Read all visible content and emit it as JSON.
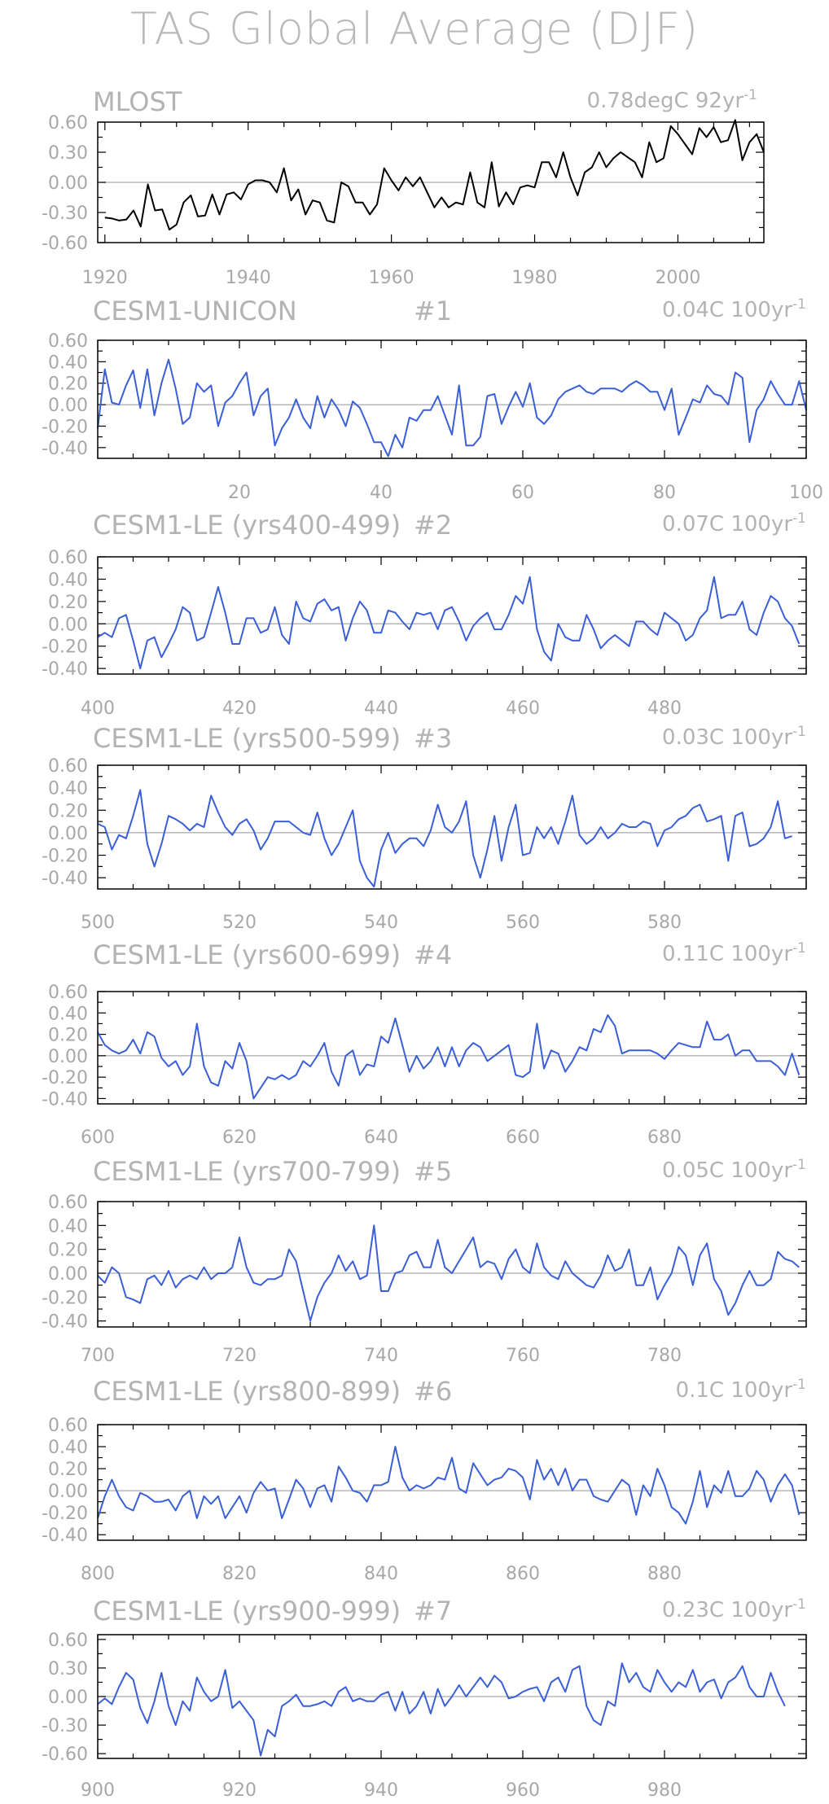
{
  "title": "TAS Global Average (DJF)",
  "colors": {
    "observed": "#000000",
    "model": "#3a5fd6",
    "frame": "#000000",
    "text": "#b3b3b3",
    "zero_line": "#aaaaaa"
  },
  "chart_data": [
    {
      "type": "line",
      "title": "MLOST",
      "run": "",
      "trend": "0.78degC 92yr",
      "trend_exponent": "-1",
      "xlim": [
        1919,
        2012
      ],
      "ylim": [
        -0.6,
        0.6
      ],
      "yticks": [
        "0.60",
        "0.30",
        "0.00",
        "-0.30",
        "-0.60"
      ],
      "yticks_values": [
        0.6,
        0.3,
        0.0,
        -0.3,
        -0.6
      ],
      "xticks": [
        "1920",
        "1940",
        "1960",
        "1980",
        "2000"
      ],
      "xticks_values": [
        1920,
        1940,
        1960,
        1980,
        2000
      ],
      "color": "#000000",
      "x_start": 1920,
      "values": [
        -0.35,
        -0.36,
        -0.38,
        -0.37,
        -0.28,
        -0.44,
        -0.02,
        -0.28,
        -0.27,
        -0.47,
        -0.42,
        -0.2,
        -0.13,
        -0.34,
        -0.33,
        -0.12,
        -0.32,
        -0.12,
        -0.1,
        -0.17,
        -0.02,
        0.02,
        0.02,
        0.0,
        -0.1,
        0.14,
        -0.18,
        -0.07,
        -0.32,
        -0.18,
        -0.2,
        -0.38,
        -0.4,
        0.0,
        -0.04,
        -0.2,
        -0.2,
        -0.32,
        -0.22,
        0.14,
        0.02,
        -0.08,
        0.05,
        -0.04,
        0.05,
        -0.1,
        -0.25,
        -0.15,
        -0.25,
        -0.2,
        -0.22,
        0.1,
        -0.2,
        -0.25,
        0.2,
        -0.24,
        -0.1,
        -0.22,
        -0.05,
        -0.03,
        -0.05,
        0.2,
        0.2,
        0.05,
        0.3,
        0.05,
        -0.13,
        0.1,
        0.15,
        0.3,
        0.15,
        0.24,
        0.3,
        0.25,
        0.2,
        0.05,
        0.4,
        0.2,
        0.24,
        0.56,
        0.48,
        0.38,
        0.28,
        0.54,
        0.45,
        0.55,
        0.4,
        0.42,
        0.62,
        0.22,
        0.4,
        0.48,
        0.3
      ]
    },
    {
      "type": "line",
      "title": "CESM1-UNICON",
      "run": "#1",
      "trend": "0.04C 100yr",
      "trend_exponent": "-1",
      "xlim": [
        0,
        100
      ],
      "ylim": [
        -0.5,
        0.6
      ],
      "yticks": [
        "0.60",
        "0.40",
        "0.20",
        "0.00",
        "-0.20",
        "-0.40"
      ],
      "yticks_values": [
        0.6,
        0.4,
        0.2,
        0.0,
        -0.2,
        -0.4
      ],
      "xticks": [
        "20",
        "40",
        "60",
        "80",
        "100"
      ],
      "xticks_values": [
        20,
        40,
        60,
        80,
        100
      ],
      "color": "#3a5fd6",
      "x_start": 0,
      "values": [
        -0.22,
        0.33,
        0.02,
        0.0,
        0.18,
        0.32,
        -0.03,
        0.33,
        -0.1,
        0.2,
        0.42,
        0.15,
        -0.18,
        -0.12,
        0.2,
        0.12,
        0.18,
        -0.2,
        0.02,
        0.08,
        0.2,
        0.3,
        -0.1,
        0.08,
        0.15,
        -0.38,
        -0.22,
        -0.12,
        0.05,
        -0.12,
        -0.22,
        0.08,
        -0.12,
        0.05,
        -0.05,
        -0.2,
        0.03,
        -0.03,
        -0.18,
        -0.35,
        -0.35,
        -0.48,
        -0.28,
        -0.4,
        -0.12,
        -0.15,
        -0.05,
        -0.05,
        0.08,
        -0.1,
        -0.28,
        0.18,
        -0.38,
        -0.38,
        -0.3,
        0.08,
        0.1,
        -0.18,
        -0.02,
        0.12,
        -0.02,
        0.2,
        -0.12,
        -0.18,
        -0.1,
        0.05,
        0.12,
        0.15,
        0.18,
        0.12,
        0.1,
        0.15,
        0.15,
        0.15,
        0.12,
        0.18,
        0.22,
        0.18,
        0.12,
        0.12,
        -0.05,
        0.15,
        -0.28,
        -0.12,
        0.05,
        0.02,
        0.18,
        0.1,
        0.08,
        0.0,
        0.3,
        0.25,
        -0.35,
        -0.05,
        0.05,
        0.22,
        0.1,
        0.0,
        0.0,
        0.22,
        -0.05
      ]
    },
    {
      "type": "line",
      "title": "CESM1-LE (yrs400-499)",
      "run": "#2",
      "trend": "0.07C 100yr",
      "trend_exponent": "-1",
      "xlim": [
        400,
        500
      ],
      "ylim": [
        -0.45,
        0.6
      ],
      "yticks": [
        "0.60",
        "0.40",
        "0.20",
        "0.00",
        "-0.20",
        "-0.40"
      ],
      "yticks_values": [
        0.6,
        0.4,
        0.2,
        0.0,
        -0.2,
        -0.4
      ],
      "xticks": [
        "400",
        "420",
        "440",
        "460",
        "480"
      ],
      "xticks_values": [
        400,
        420,
        440,
        460,
        480
      ],
      "color": "#3a5fd6",
      "x_start": 400,
      "values": [
        -0.12,
        -0.08,
        -0.12,
        0.05,
        0.08,
        -0.15,
        -0.4,
        -0.15,
        -0.12,
        -0.3,
        -0.18,
        -0.05,
        0.15,
        0.1,
        -0.15,
        -0.12,
        0.1,
        0.33,
        0.1,
        -0.18,
        -0.18,
        0.05,
        0.05,
        -0.08,
        -0.05,
        0.15,
        -0.1,
        -0.18,
        0.2,
        0.05,
        0.02,
        0.18,
        0.22,
        0.12,
        0.15,
        -0.15,
        0.05,
        0.2,
        0.12,
        -0.08,
        -0.08,
        0.12,
        0.1,
        0.02,
        -0.05,
        0.1,
        0.08,
        0.1,
        -0.05,
        0.12,
        0.15,
        0.02,
        -0.15,
        -0.02,
        0.05,
        0.1,
        -0.05,
        -0.05,
        0.08,
        0.25,
        0.18,
        0.42,
        -0.05,
        -0.25,
        -0.33,
        0.0,
        -0.12,
        -0.15,
        -0.15,
        0.08,
        -0.05,
        -0.22,
        -0.15,
        -0.1,
        -0.15,
        -0.2,
        0.02,
        0.02,
        -0.05,
        -0.1,
        0.1,
        0.05,
        0.0,
        -0.15,
        -0.1,
        0.05,
        0.12,
        0.42,
        0.05,
        0.08,
        0.08,
        0.2,
        -0.05,
        -0.1,
        0.1,
        0.25,
        0.2,
        0.05,
        -0.02,
        -0.18
      ]
    },
    {
      "type": "line",
      "title": "CESM1-LE (yrs500-599)",
      "run": "#3",
      "trend": "0.03C 100yr",
      "trend_exponent": "-1",
      "xlim": [
        500,
        600
      ],
      "ylim": [
        -0.5,
        0.6
      ],
      "yticks": [
        "0.60",
        "0.40",
        "0.20",
        "0.00",
        "-0.20",
        "-0.40"
      ],
      "yticks_values": [
        0.6,
        0.4,
        0.2,
        0.0,
        -0.2,
        -0.4
      ],
      "xticks": [
        "500",
        "520",
        "540",
        "560",
        "580"
      ],
      "xticks_values": [
        500,
        520,
        540,
        560,
        580
      ],
      "color": "#3a5fd6",
      "x_start": 500,
      "values": [
        0.08,
        0.05,
        -0.15,
        -0.02,
        -0.05,
        0.15,
        0.38,
        -0.1,
        -0.3,
        -0.1,
        0.15,
        0.12,
        0.08,
        0.02,
        0.08,
        0.05,
        0.33,
        0.18,
        0.05,
        -0.02,
        0.08,
        0.12,
        0.02,
        -0.15,
        -0.05,
        0.1,
        0.1,
        0.1,
        0.05,
        0.0,
        -0.02,
        0.18,
        -0.05,
        -0.2,
        -0.1,
        0.05,
        0.2,
        -0.25,
        -0.4,
        -0.48,
        -0.15,
        0.0,
        -0.18,
        -0.1,
        -0.05,
        -0.05,
        -0.12,
        0.02,
        0.25,
        0.05,
        0.0,
        0.1,
        0.28,
        -0.2,
        -0.4,
        -0.15,
        0.15,
        -0.25,
        0.05,
        0.25,
        -0.2,
        -0.18,
        0.05,
        -0.05,
        0.05,
        -0.1,
        0.1,
        0.33,
        -0.02,
        -0.1,
        -0.05,
        0.05,
        -0.05,
        0.0,
        0.08,
        0.05,
        0.05,
        0.1,
        0.08,
        -0.12,
        0.02,
        0.05,
        0.12,
        0.15,
        0.22,
        0.25,
        0.1,
        0.12,
        0.15,
        -0.25,
        0.15,
        0.18,
        -0.12,
        -0.1,
        -0.05,
        0.05,
        0.28,
        -0.05,
        -0.03
      ]
    },
    {
      "type": "line",
      "title": "CESM1-LE (yrs600-699)",
      "run": "#4",
      "trend": "0.11C 100yr",
      "trend_exponent": "-1",
      "xlim": [
        600,
        700
      ],
      "ylim": [
        -0.45,
        0.6
      ],
      "yticks": [
        "0.60",
        "0.40",
        "0.20",
        "0.00",
        "-0.20",
        "-0.40"
      ],
      "yticks_values": [
        0.6,
        0.4,
        0.2,
        0.0,
        -0.2,
        -0.4
      ],
      "xticks": [
        "600",
        "620",
        "640",
        "660",
        "680"
      ],
      "xticks_values": [
        600,
        620,
        640,
        660,
        680
      ],
      "color": "#3a5fd6",
      "x_start": 600,
      "values": [
        0.22,
        0.1,
        0.05,
        0.02,
        0.05,
        0.15,
        0.02,
        0.22,
        0.18,
        -0.02,
        -0.1,
        -0.05,
        -0.18,
        -0.1,
        0.3,
        -0.1,
        -0.25,
        -0.28,
        -0.05,
        -0.12,
        0.12,
        -0.05,
        -0.4,
        -0.3,
        -0.2,
        -0.22,
        -0.18,
        -0.22,
        -0.18,
        -0.05,
        -0.1,
        0.0,
        0.12,
        -0.15,
        -0.28,
        0.0,
        0.05,
        -0.18,
        -0.08,
        -0.1,
        0.18,
        0.12,
        0.35,
        0.1,
        -0.15,
        0.0,
        -0.12,
        -0.05,
        0.08,
        -0.1,
        0.08,
        -0.1,
        0.05,
        0.12,
        0.08,
        -0.05,
        0.0,
        0.05,
        0.1,
        -0.18,
        -0.2,
        -0.15,
        0.3,
        -0.12,
        0.05,
        0.02,
        -0.15,
        -0.05,
        0.08,
        0.05,
        0.25,
        0.22,
        0.38,
        0.28,
        0.02,
        0.05,
        0.05,
        0.05,
        0.05,
        0.02,
        -0.03,
        0.05,
        0.12,
        0.1,
        0.08,
        0.08,
        0.32,
        0.15,
        0.15,
        0.2,
        0.0,
        0.05,
        0.05,
        -0.05,
        -0.05,
        -0.05,
        -0.1,
        -0.18,
        0.02,
        -0.18
      ]
    },
    {
      "type": "line",
      "title": "CESM1-LE (yrs700-799)",
      "run": "#5",
      "trend": "0.05C 100yr",
      "trend_exponent": "-1",
      "xlim": [
        700,
        800
      ],
      "ylim": [
        -0.45,
        0.6
      ],
      "yticks": [
        "0.60",
        "0.40",
        "0.20",
        "0.00",
        "-0.20",
        "-0.40"
      ],
      "yticks_values": [
        0.6,
        0.4,
        0.2,
        0.0,
        -0.2,
        -0.4
      ],
      "xticks": [
        "700",
        "720",
        "740",
        "760",
        "780"
      ],
      "xticks_values": [
        700,
        720,
        740,
        760,
        780
      ],
      "color": "#3a5fd6",
      "x_start": 700,
      "values": [
        -0.02,
        -0.08,
        0.05,
        0.0,
        -0.2,
        -0.22,
        -0.25,
        -0.05,
        -0.02,
        -0.1,
        0.02,
        -0.12,
        -0.05,
        -0.02,
        -0.05,
        0.05,
        -0.05,
        0.0,
        0.0,
        0.05,
        0.3,
        0.05,
        -0.08,
        -0.1,
        -0.05,
        -0.05,
        -0.02,
        0.2,
        0.1,
        -0.15,
        -0.4,
        -0.2,
        -0.08,
        0.0,
        0.15,
        0.02,
        0.1,
        -0.05,
        -0.02,
        0.4,
        -0.15,
        -0.15,
        0.0,
        0.02,
        0.15,
        0.18,
        0.05,
        0.05,
        0.28,
        0.05,
        0.0,
        0.1,
        0.2,
        0.3,
        0.05,
        0.1,
        0.08,
        -0.05,
        0.12,
        0.2,
        0.05,
        0.0,
        0.25,
        0.05,
        -0.02,
        -0.05,
        0.1,
        0.0,
        -0.05,
        -0.1,
        -0.12,
        -0.02,
        0.15,
        0.02,
        0.05,
        0.2,
        -0.1,
        -0.1,
        0.05,
        -0.22,
        -0.1,
        0.0,
        0.22,
        0.15,
        -0.1,
        0.15,
        0.25,
        -0.05,
        -0.15,
        -0.35,
        -0.25,
        -0.1,
        0.02,
        -0.1,
        -0.1,
        -0.05,
        0.18,
        0.12,
        0.1,
        0.05
      ]
    },
    {
      "type": "line",
      "title": "CESM1-LE (yrs800-899)",
      "run": "#6",
      "trend": "0.1C 100yr",
      "trend_exponent": "-1",
      "xlim": [
        800,
        900
      ],
      "ylim": [
        -0.45,
        0.6
      ],
      "yticks": [
        "0.60",
        "0.40",
        "0.20",
        "0.00",
        "-0.20",
        "-0.40"
      ],
      "yticks_values": [
        0.6,
        0.4,
        0.2,
        0.0,
        -0.2,
        -0.4
      ],
      "xticks": [
        "800",
        "820",
        "840",
        "860",
        "880"
      ],
      "xticks_values": [
        800,
        820,
        840,
        860,
        880
      ],
      "color": "#3a5fd6",
      "x_start": 800,
      "values": [
        -0.25,
        -0.05,
        0.1,
        -0.05,
        -0.15,
        -0.18,
        -0.02,
        -0.05,
        -0.1,
        -0.1,
        -0.08,
        -0.18,
        -0.05,
        0.0,
        -0.25,
        -0.05,
        -0.12,
        -0.05,
        -0.25,
        -0.15,
        -0.05,
        -0.2,
        -0.02,
        0.08,
        0.0,
        0.02,
        -0.25,
        -0.08,
        0.1,
        0.02,
        -0.15,
        0.02,
        0.05,
        -0.1,
        0.22,
        0.12,
        0.0,
        -0.02,
        -0.1,
        0.05,
        0.05,
        0.08,
        0.4,
        0.12,
        0.0,
        0.05,
        0.02,
        0.05,
        0.12,
        0.1,
        0.3,
        0.02,
        -0.02,
        0.25,
        0.15,
        0.05,
        0.1,
        0.12,
        0.2,
        0.18,
        0.12,
        -0.08,
        0.28,
        0.1,
        0.2,
        0.05,
        0.2,
        0.0,
        0.1,
        0.1,
        -0.05,
        -0.08,
        -0.1,
        0.0,
        0.1,
        0.05,
        -0.22,
        0.05,
        -0.05,
        0.2,
        0.05,
        -0.15,
        -0.2,
        -0.3,
        -0.1,
        0.18,
        -0.15,
        0.05,
        -0.02,
        0.18,
        -0.05,
        -0.05,
        0.02,
        0.18,
        0.1,
        -0.1,
        0.05,
        0.15,
        0.05,
        -0.22
      ]
    },
    {
      "type": "line",
      "title": "CESM1-LE (yrs900-999)",
      "run": "#7",
      "trend": "0.23C 100yr",
      "trend_exponent": "-1",
      "xlim": [
        900,
        1000
      ],
      "ylim": [
        -0.65,
        0.65
      ],
      "yticks": [
        "0.60",
        "0.30",
        "0.00",
        "-0.30",
        "-0.60"
      ],
      "yticks_values": [
        0.6,
        0.3,
        0.0,
        -0.3,
        -0.6
      ],
      "xticks": [
        "900",
        "920",
        "940",
        "960",
        "980"
      ],
      "xticks_values": [
        900,
        920,
        940,
        960,
        980
      ],
      "color": "#3a5fd6",
      "x_start": 900,
      "values": [
        -0.08,
        -0.02,
        -0.08,
        0.1,
        0.25,
        0.18,
        -0.12,
        -0.28,
        -0.05,
        0.25,
        -0.1,
        -0.3,
        -0.05,
        -0.15,
        0.2,
        0.05,
        -0.05,
        0.0,
        0.28,
        -0.12,
        -0.05,
        -0.15,
        -0.25,
        -0.62,
        -0.35,
        -0.42,
        -0.1,
        -0.05,
        0.02,
        -0.1,
        -0.1,
        -0.08,
        -0.05,
        -0.1,
        0.05,
        0.1,
        -0.05,
        -0.02,
        -0.05,
        -0.05,
        0.02,
        0.05,
        -0.15,
        0.05,
        -0.18,
        -0.1,
        0.05,
        -0.18,
        0.08,
        -0.1,
        0.0,
        0.12,
        0.0,
        0.1,
        0.2,
        0.1,
        0.22,
        0.15,
        -0.02,
        0.0,
        0.05,
        0.08,
        0.1,
        -0.05,
        0.15,
        0.2,
        0.05,
        0.28,
        0.32,
        -0.1,
        -0.25,
        -0.3,
        -0.05,
        -0.1,
        0.35,
        0.15,
        0.25,
        0.1,
        0.05,
        0.28,
        0.15,
        0.05,
        0.15,
        0.1,
        0.28,
        0.05,
        0.15,
        0.18,
        -0.02,
        0.15,
        0.2,
        0.32,
        0.1,
        0.0,
        0.0,
        0.25,
        0.05,
        -0.1
      ]
    }
  ]
}
